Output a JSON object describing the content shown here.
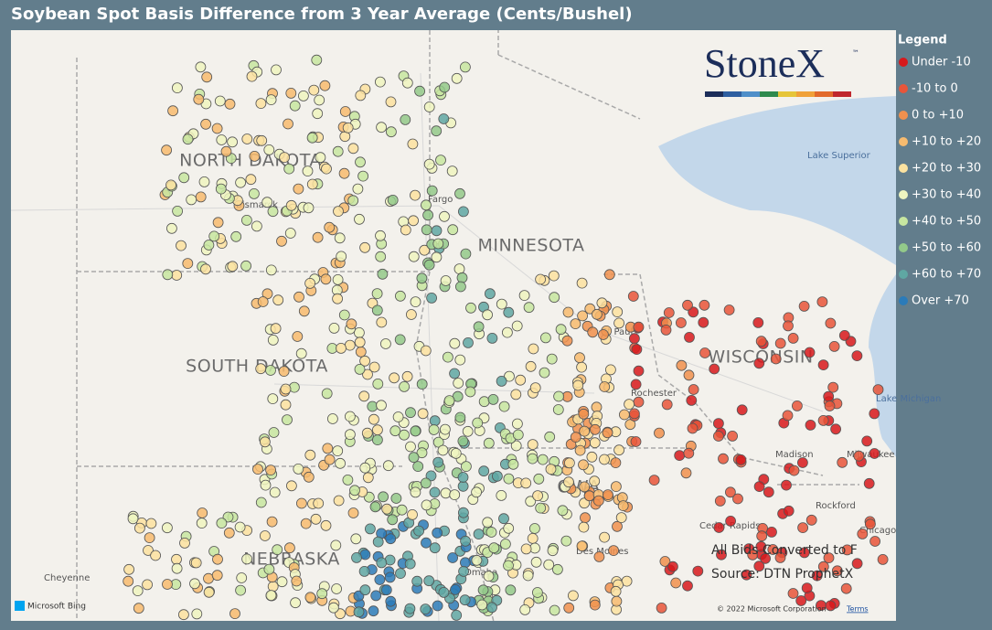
{
  "header": {
    "title": "Soybean Spot Basis Difference from 3 Year Average (Cents/Bushel)"
  },
  "legend": {
    "title": "Legend",
    "items": [
      {
        "label": "Under -10",
        "color": "#d7191c"
      },
      {
        "label": "-10 to 0",
        "color": "#e8553a"
      },
      {
        "label": "0 to +10",
        "color": "#f0904e"
      },
      {
        "label": "+10 to +20",
        "color": "#f7bb6f"
      },
      {
        "label": "+20 to +30",
        "color": "#fbe2a0"
      },
      {
        "label": "+30 to +40",
        "color": "#eef5c0"
      },
      {
        "label": "+40 to +50",
        "color": "#c7e6a0"
      },
      {
        "label": "+50 to +60",
        "color": "#93c98a"
      },
      {
        "label": "+60 to +70",
        "color": "#5fa7a3"
      },
      {
        "label": "Over +70",
        "color": "#2b7bb9"
      }
    ]
  },
  "logo": {
    "name": "StoneX",
    "mark": "™"
  },
  "map": {
    "states": [
      "NORTH DAKOTA",
      "SOUTH DAKOTA",
      "MINNESOTA",
      "WISCONSIN",
      "NEBRASKA",
      "OWA"
    ],
    "cities": [
      "Bismarck",
      "Fargo",
      "St Paul",
      "Rochester",
      "Madison",
      "Milwaukee",
      "Rockford",
      "Chicago",
      "Cheyenne",
      "Omaha",
      "Des Moines",
      "Cedar Rapids"
    ],
    "water": [
      "Lake Superior",
      "Lake Michigan"
    ],
    "notes": [
      "All Bids Converted to F",
      "Source: DTN ProphetX"
    ],
    "attribution": {
      "provider": "Microsoft Bing",
      "copyright": "© 2022 Microsoft Corporation",
      "terms": "Terms"
    }
  }
}
